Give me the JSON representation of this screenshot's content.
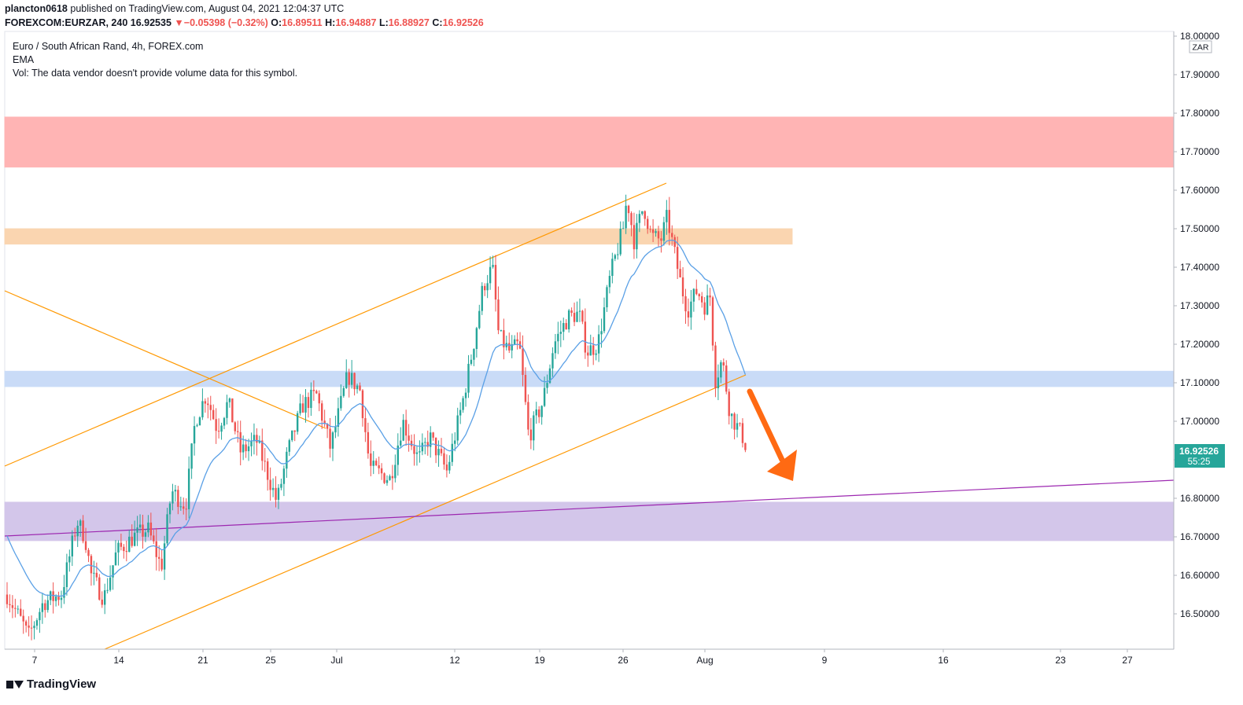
{
  "header": {
    "publisher": "plancton0618",
    "published_text": " published on TradingView.com, August 04, 2021 12:04:37 UTC",
    "symbol": "FOREXCOM:EURZAR, 240",
    "price": "16.92535",
    "change_arrow": "▼",
    "change": "−0.05398 (−0.32%)",
    "open_label": "O:",
    "open": "16.89511",
    "high_label": "H:",
    "high": "16.94887",
    "low_label": "L:",
    "low": "16.88927",
    "close_label": "C:",
    "close": "16.92526"
  },
  "legend": {
    "title": "Euro / South African Rand, 4h, FOREX.com",
    "indicator": "EMA",
    "volume_note": "Vol: The data vendor doesn't provide volume data for this symbol."
  },
  "price_axis": {
    "currency": "ZAR",
    "current_price": "16.92526",
    "countdown": "55:25",
    "current_color": "#26a69a"
  },
  "footer": {
    "brand": "TradingView"
  },
  "colors": {
    "bull": "#26a69a",
    "bear": "#ef5350",
    "ema": "#5aa0e6",
    "trend": "#ff9800",
    "support_line": "#9c27b0",
    "zone_red": "#ffb4b4",
    "zone_orange": "#fad5b0",
    "zone_blue": "#c9dbf7",
    "zone_purple": "#d3c6ea",
    "arrow": "#ff6a13"
  },
  "chart_data": {
    "type": "candlestick",
    "symbol": "FOREXCOM:EURZAR",
    "timeframe": "4h",
    "y_ticks": [
      "16.50000",
      "16.60000",
      "16.70000",
      "16.80000",
      "16.90000",
      "17.00000",
      "17.10000",
      "17.20000",
      "17.30000",
      "17.40000",
      "17.50000",
      "17.60000",
      "17.70000",
      "17.80000",
      "17.90000",
      "18.00000"
    ],
    "ylim": [
      16.41,
      18.0
    ],
    "x_ticks": [
      "7",
      "14",
      "21",
      "25",
      "Jul",
      "12",
      "19",
      "26",
      "Aug",
      "9",
      "16",
      "23",
      "27"
    ],
    "series": [
      {
        "name": "EURZAR",
        "points": [
          {
            "x": "Jun 7",
            "y": 16.55
          },
          {
            "x": "Jun 8",
            "y": 16.44
          },
          {
            "x": "Jun 10",
            "y": 16.74
          },
          {
            "x": "Jun 11",
            "y": 16.57
          },
          {
            "x": "Jun 14",
            "y": 16.54
          },
          {
            "x": "Jun 16",
            "y": 16.72
          },
          {
            "x": "Jun 17",
            "y": 16.62
          },
          {
            "x": "Jun 18",
            "y": 16.86
          },
          {
            "x": "Jun 21",
            "y": 17.07
          },
          {
            "x": "Jun 22",
            "y": 17.0
          },
          {
            "x": "Jun 24",
            "y": 16.92
          },
          {
            "x": "Jun 25",
            "y": 16.79
          },
          {
            "x": "Jun 28",
            "y": 17.05
          },
          {
            "x": "Jun 30",
            "y": 16.98
          },
          {
            "x": "Jul 2",
            "y": 17.15
          },
          {
            "x": "Jul 5",
            "y": 16.88
          },
          {
            "x": "Jul 7",
            "y": 16.85
          },
          {
            "x": "Jul 8",
            "y": 17.0
          },
          {
            "x": "Jul 9",
            "y": 16.88
          },
          {
            "x": "Jul 12",
            "y": 17.1
          },
          {
            "x": "Jul 13",
            "y": 17.35
          },
          {
            "x": "Jul 14",
            "y": 17.41
          },
          {
            "x": "Jul 15",
            "y": 17.15
          },
          {
            "x": "Jul 16",
            "y": 17.2
          },
          {
            "x": "Jul 19",
            "y": 16.96
          },
          {
            "x": "Jul 20",
            "y": 17.05
          },
          {
            "x": "Jul 21",
            "y": 17.2
          },
          {
            "x": "Jul 22",
            "y": 17.28
          },
          {
            "x": "Jul 23",
            "y": 17.2
          },
          {
            "x": "Jul 26",
            "y": 17.57
          },
          {
            "x": "Jul 27",
            "y": 17.45
          },
          {
            "x": "Jul 28",
            "y": 17.52
          },
          {
            "x": "Jul 29",
            "y": 17.44
          },
          {
            "x": "Jul 30",
            "y": 17.3
          },
          {
            "x": "Aug 2",
            "y": 17.36
          },
          {
            "x": "Aug 2",
            "y": 17.1
          },
          {
            "x": "Aug 3",
            "y": 16.98
          },
          {
            "x": "Aug 4",
            "y": 16.925
          }
        ]
      }
    ],
    "zones": [
      {
        "from": 17.66,
        "to": 17.79,
        "color": "#ffb4b4"
      },
      {
        "from": 17.46,
        "to": 17.5,
        "color": "#fad5b0"
      },
      {
        "from": 17.09,
        "to": 17.13,
        "color": "#c9dbf7"
      },
      {
        "from": 16.69,
        "to": 16.79,
        "color": "#d3c6ea"
      }
    ],
    "grid": false
  }
}
